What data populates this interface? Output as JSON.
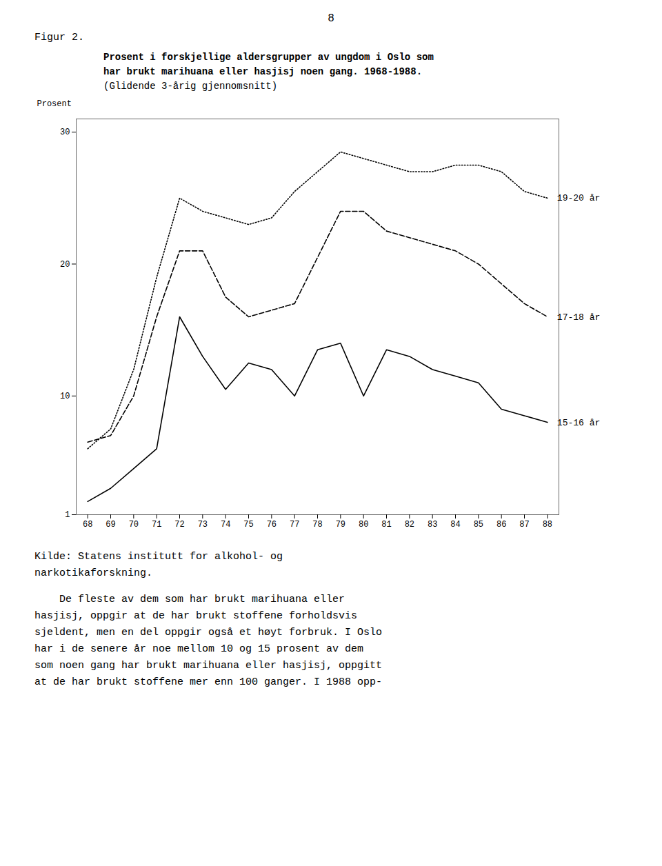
{
  "chart_data": {
    "type": "line",
    "title": "Prosent i forskjellige aldersgrupper av ungdom i Oslo som\nhar brukt marihuana eller hasjisj noen gang. 1968-1988.",
    "subtitle": "(Glidende 3-årig gjennomsnitt)",
    "ylabel": "Prosent",
    "x": [
      68,
      69,
      70,
      71,
      72,
      73,
      74,
      75,
      76,
      77,
      78,
      79,
      80,
      81,
      82,
      83,
      84,
      85,
      86,
      87,
      88
    ],
    "xlim": [
      67.5,
      88.5
    ],
    "xticks": [
      68,
      69,
      70,
      71,
      72,
      73,
      74,
      75,
      76,
      77,
      78,
      79,
      80,
      81,
      82,
      83,
      84,
      85,
      86,
      87,
      88
    ],
    "ylim": [
      1,
      31
    ],
    "yticks": [
      1,
      10,
      20,
      30
    ],
    "grid": false,
    "series": [
      {
        "name": "19-20 år",
        "color": "#000000",
        "line_style": "dotted",
        "values": [
          6.0,
          7.5,
          12.0,
          19.0,
          25.0,
          24.0,
          23.5,
          23.0,
          23.5,
          25.5,
          27.0,
          28.5,
          28.0,
          27.5,
          27.0,
          27.0,
          27.5,
          27.5,
          27.0,
          25.5,
          25.0
        ]
      },
      {
        "name": "17-18 år",
        "color": "#000000",
        "line_style": "dashed",
        "values": [
          6.5,
          7.0,
          10.0,
          16.0,
          21.0,
          21.0,
          17.5,
          16.0,
          16.5,
          17.0,
          20.5,
          24.0,
          24.0,
          22.5,
          22.0,
          21.5,
          21.0,
          20.0,
          18.5,
          17.0,
          16.0
        ]
      },
      {
        "name": "15-16 år",
        "color": "#000000",
        "line_style": "solid",
        "values": [
          2.0,
          3.0,
          4.5,
          6.0,
          16.0,
          13.0,
          10.5,
          12.5,
          12.0,
          10.0,
          13.5,
          14.0,
          10.0,
          13.5,
          13.0,
          12.0,
          11.5,
          11.0,
          9.0,
          8.5,
          8.0
        ]
      }
    ],
    "annotations": [
      "8",
      "Figur 2.",
      "Kilde: Statens institutt for alkohol- og\nnarkotikaforskning.",
      "    De fleste av dem som har brukt marihuana eller\nhasjisj, oppgir at de har brukt stoffene forholdsvis\nsjeldent, men en del oppgir også et høyt forbruk. I Oslo\nhar i de senere år noe mellom 10 og 15 prosent av dem\nsom noen gang har brukt marihuana eller hasjisj, oppgitt\nat de har brukt stoffene mer enn 100 ganger. I 1988 opp-"
    ]
  }
}
